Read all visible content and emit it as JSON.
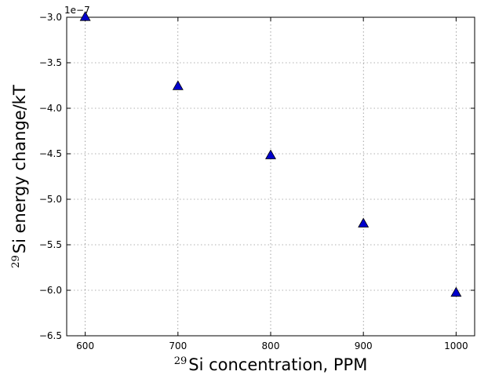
{
  "chart_data": {
    "type": "scatter",
    "xlabel": {
      "sup": "29",
      "text": "Si concentration, PPM"
    },
    "ylabel": {
      "sup": "29",
      "text": "Si energy change/kT"
    },
    "y_offset_label": "1e−7",
    "xlim": [
      580,
      1020
    ],
    "ylim": [
      -6.5,
      -3.0
    ],
    "x_ticks": [
      600,
      700,
      800,
      900,
      1000
    ],
    "y_ticks": [
      -3.0,
      -3.5,
      -4.0,
      -4.5,
      -5.0,
      -5.5,
      -6.0,
      -6.5
    ],
    "x_tick_labels": [
      "600",
      "700",
      "800",
      "900",
      "1000"
    ],
    "y_tick_labels": [
      "−3.0",
      "−3.5",
      "−4.0",
      "−4.5",
      "−5.0",
      "−5.5",
      "−6.0",
      "−6.5"
    ],
    "grid": true,
    "series": [
      {
        "marker": "triangle-up",
        "color": "#0000cc",
        "x": [
          600,
          700,
          800,
          900,
          1000
        ],
        "y": [
          -3.0,
          -3.76,
          -4.52,
          -5.27,
          -6.03
        ]
      }
    ]
  }
}
